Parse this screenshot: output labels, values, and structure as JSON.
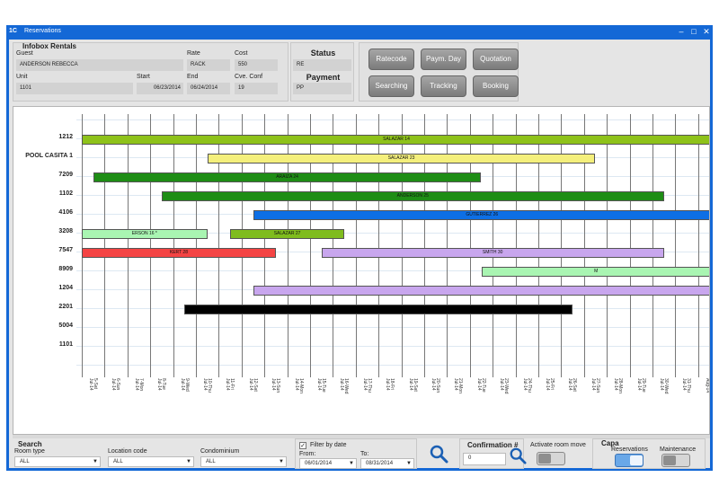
{
  "window": {
    "title": "Reservations",
    "app_icon": "1C",
    "minimize": "–",
    "maximize": "□",
    "close": "✕"
  },
  "infobox": {
    "title": "Infobox Rentals",
    "guest_label": "Guest",
    "guest_value": "ANDERSON REBECCA",
    "rate_label": "Rate",
    "rate_value": "RACK",
    "cost_label": "Cost",
    "cost_value": "550",
    "unit_label": "Unit",
    "unit_value": "1101",
    "start_label": "Start",
    "start_value": "06/23/2014",
    "end_label": "End",
    "end_value": "06/24/2014",
    "conf_label": "Cve. Conf",
    "conf_value": "19"
  },
  "status": {
    "status_label": "Status",
    "status_value": "RE",
    "payment_label": "Payment",
    "payment_value": "PP"
  },
  "buttons": {
    "ratecode": "Ratecode",
    "paym_day": "Paym. Day",
    "quotation": "Quotation",
    "searching": "Searching",
    "tracking": "Tracking",
    "booking": "Booking"
  },
  "gantt": {
    "rows": [
      "1212",
      "POOL CASITA 1",
      "7209",
      "1102",
      "4106",
      "3208",
      "7547",
      "8909",
      "1204",
      "2201",
      "5004",
      "1101"
    ],
    "days": [
      "5-Sat\nJul-14",
      "6-Sun\nJul-14",
      "7-Mon\nJul-14",
      "8-Tue\nJul-14",
      "9-Wed\nJul-14",
      "10-Thu\nJul-14",
      "11-Fri\nJul-14",
      "12-Sat\nJul-14",
      "13-Sun\nJul-14",
      "14-Mon\nJul-14",
      "15-Tue\nJul-14",
      "16-Wed\nJul-14",
      "17-Thu\nJul-14",
      "18-Fri\nJul-14",
      "19-Sat\nJul-14",
      "20-Sun\nJul-14",
      "21-Mon\nJul-14",
      "22-Tue\nJul-14",
      "23-Wed\nJul-14",
      "24-Thu\nJul-14",
      "25-Fri\nJul-14",
      "26-Sat\nJul-14",
      "27-Sun\nJul-14",
      "28-Mon\nJul-14",
      "29-Tue\nJul-14",
      "30-Wed\nJul-14",
      "31-Thu\nJul-14",
      "1-Fri\nAug-14"
    ],
    "bars": [
      {
        "row": 0,
        "start": 0,
        "end": 28.5,
        "label": "SALAZAR 14",
        "color": "#8ec21a"
      },
      {
        "row": 1,
        "start": 5.5,
        "end": 22.5,
        "label": "SALAZAR 23",
        "color": "#f4ef7c"
      },
      {
        "row": 2,
        "start": 0.5,
        "end": 17.5,
        "label": "ARAIZA 24",
        "color": "#1e8d15"
      },
      {
        "row": 3,
        "start": 3.5,
        "end": 25.5,
        "label": "ANDERSON 25",
        "color": "#1e8d15"
      },
      {
        "row": 4,
        "start": 7.5,
        "end": 28.5,
        "label": "GUTIERREZ 26",
        "color": "#0d6fe5"
      },
      {
        "row": 5,
        "start": 0,
        "end": 5.5,
        "label": "ERSON 16 *",
        "color": "#a9f5b2"
      },
      {
        "row": 5,
        "start": 6.5,
        "end": 11.5,
        "label": "SALAZAR 27",
        "color": "#7fbc1e"
      },
      {
        "row": 6,
        "start": 0,
        "end": 8.5,
        "label": "KERT 28",
        "color": "#f44444"
      },
      {
        "row": 6,
        "start": 10.5,
        "end": 25.5,
        "label": "SMITH 30",
        "color": "#c8a6ee"
      },
      {
        "row": 7,
        "start": 17.5,
        "end": 28.5,
        "label": "M",
        "color": "#a9f5b2"
      },
      {
        "row": 8,
        "start": 7.5,
        "end": 28.5,
        "label": "",
        "color": "#c8a6ee"
      },
      {
        "row": 9,
        "start": 4.5,
        "end": 21.5,
        "label": "",
        "color": "#000000"
      }
    ]
  },
  "search": {
    "title": "Search",
    "room_type_label": "Room type",
    "room_type_value": "ALL",
    "location_label": "Location code",
    "location_value": "ALL",
    "condo_label": "Condominium",
    "condo_value": "ALL",
    "filter_label": "Filter by date",
    "filter_check": "✓",
    "from_label": "From:",
    "from_value": "06/01/2014",
    "to_label": "To:",
    "to_value": "08/31/2014",
    "dropdown_arrow": "▼"
  },
  "confirmation": {
    "label": "Confirmation #",
    "value": "0"
  },
  "activate": {
    "label": "Activate room move"
  },
  "capa": {
    "title": "Capa",
    "reservations": "Reservations",
    "maintenance": "Maintenance"
  }
}
